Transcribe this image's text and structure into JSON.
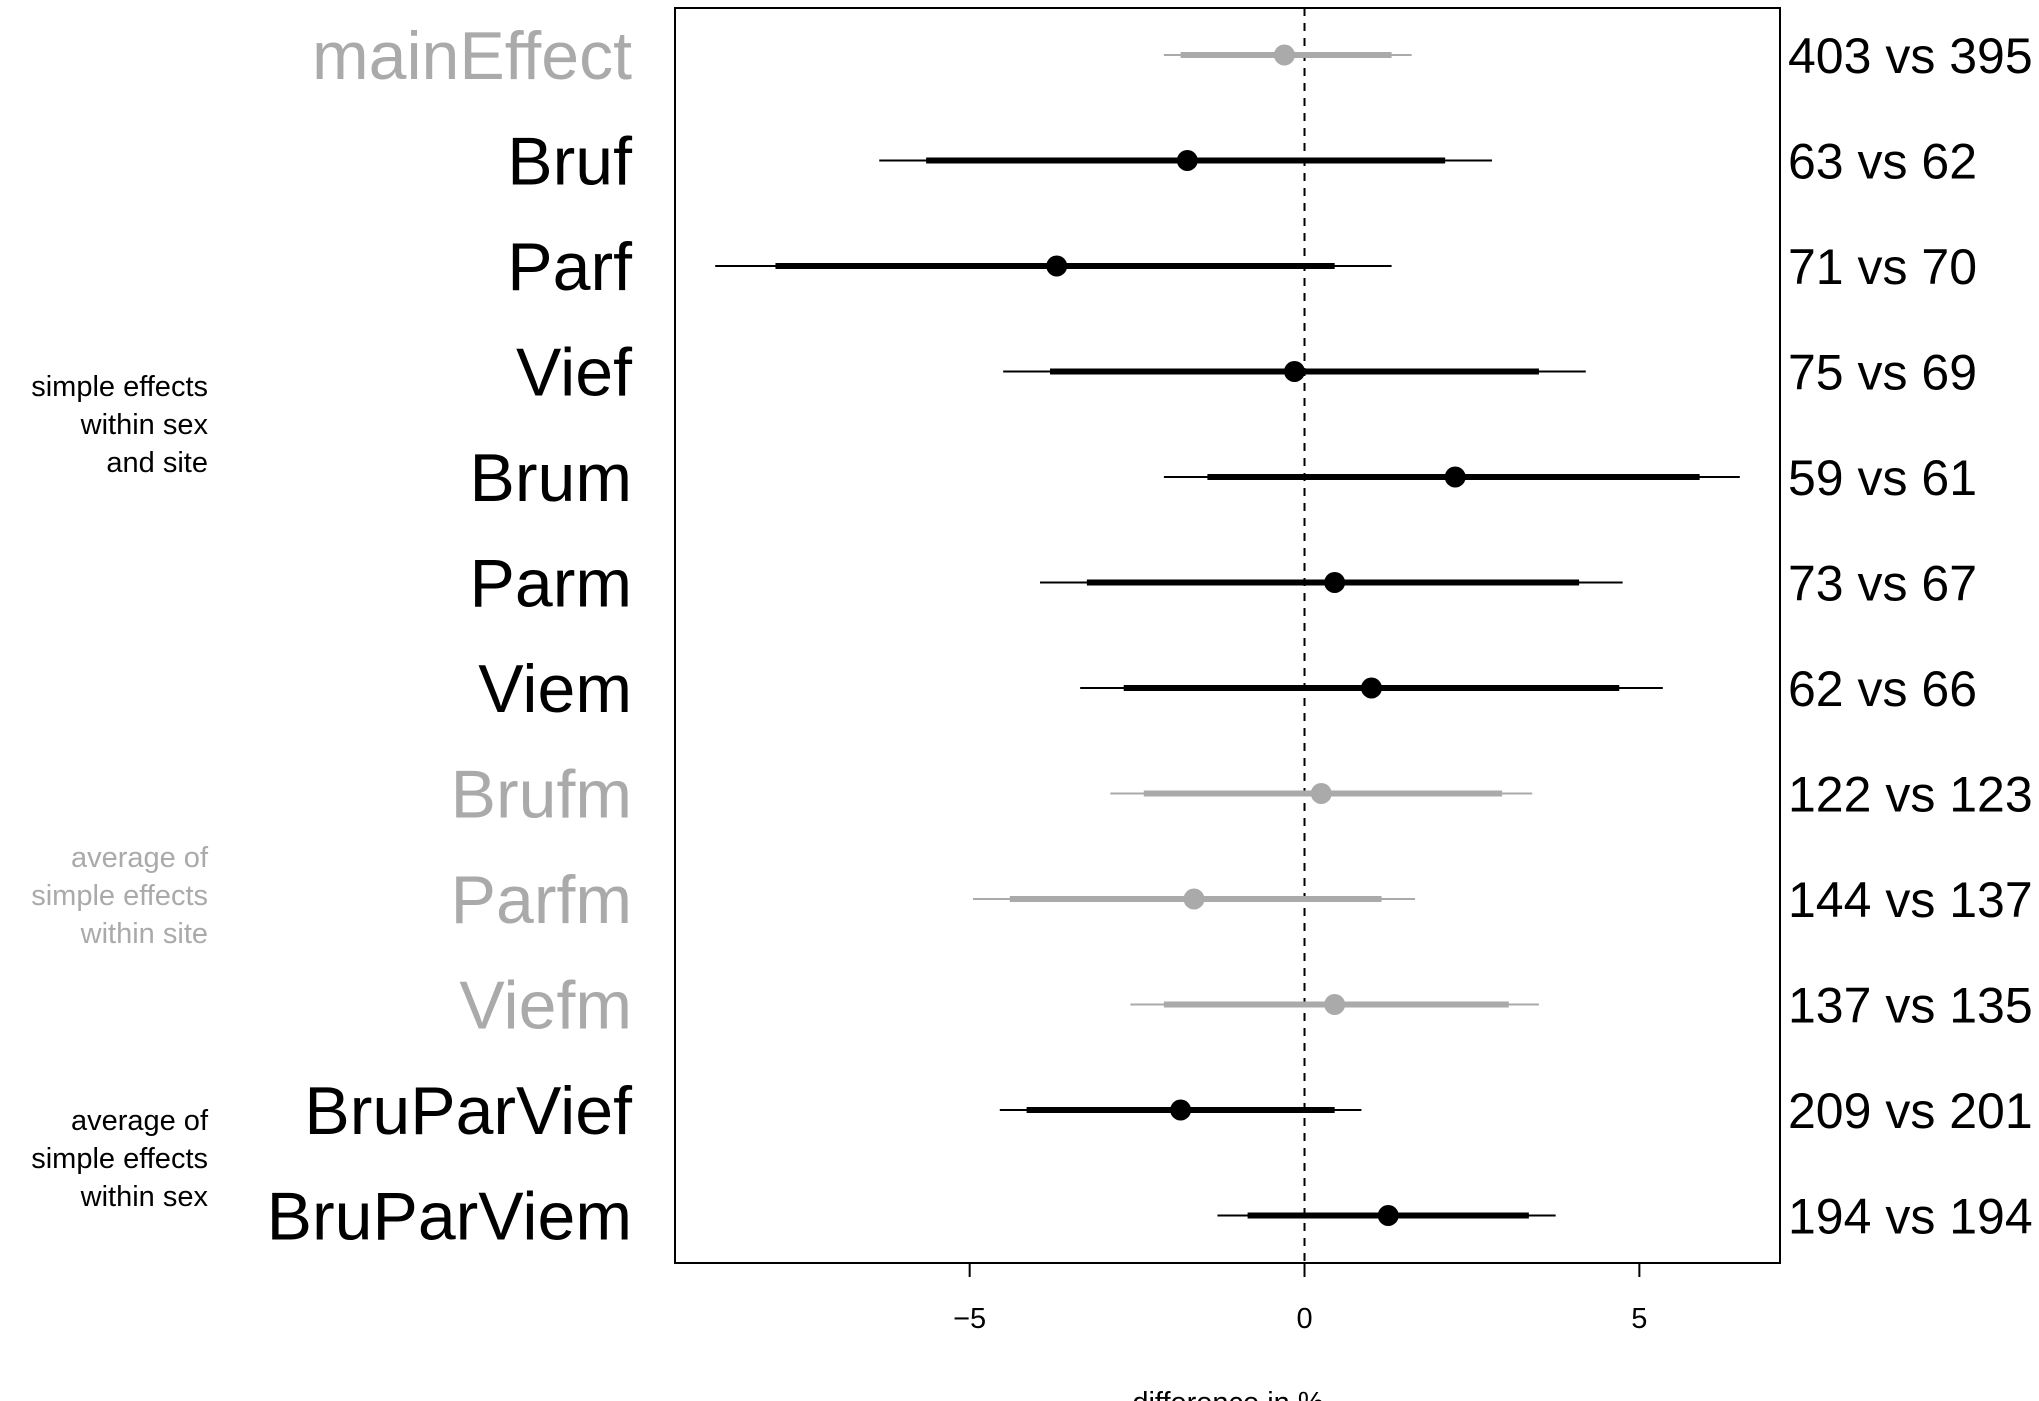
{
  "chart_data": {
    "type": "forest",
    "xlabel": "difference in %",
    "xlim": [
      -9.4,
      7.1
    ],
    "xticks": [
      -5,
      0,
      5
    ],
    "xtick_labels": [
      "−5",
      "0",
      "5"
    ],
    "reference_line": 0,
    "colors": {
      "black": "#000000",
      "grey": "#aaaaaa"
    },
    "rows": [
      {
        "label": "mainEffect",
        "color": "grey",
        "estimate": -0.3,
        "inner": [
          -1.85,
          1.3
        ],
        "outer": [
          -2.1,
          1.6
        ],
        "count": "403 vs 395"
      },
      {
        "label": "Bruf",
        "color": "black",
        "estimate": -1.75,
        "inner": [
          -5.65,
          2.1
        ],
        "outer": [
          -6.35,
          2.8
        ],
        "count": "63 vs 62"
      },
      {
        "label": "Parf",
        "color": "black",
        "estimate": -3.7,
        "inner": [
          -7.9,
          0.45
        ],
        "outer": [
          -8.8,
          1.3
        ],
        "count": "71 vs 70"
      },
      {
        "label": "Vief",
        "color": "black",
        "estimate": -0.15,
        "inner": [
          -3.8,
          3.5
        ],
        "outer": [
          -4.5,
          4.2
        ],
        "count": "75 vs 69"
      },
      {
        "label": "Brum",
        "color": "black",
        "estimate": 2.25,
        "inner": [
          -1.45,
          5.9
        ],
        "outer": [
          -2.1,
          6.5
        ],
        "count": "59 vs 61"
      },
      {
        "label": "Parm",
        "color": "black",
        "estimate": 0.45,
        "inner": [
          -3.25,
          4.1
        ],
        "outer": [
          -3.95,
          4.75
        ],
        "count": "73 vs 67"
      },
      {
        "label": "Viem",
        "color": "black",
        "estimate": 1.0,
        "inner": [
          -2.7,
          4.7
        ],
        "outer": [
          -3.35,
          5.35
        ],
        "count": "62 vs 66"
      },
      {
        "label": "Brufm",
        "color": "grey",
        "estimate": 0.25,
        "inner": [
          -2.4,
          2.95
        ],
        "outer": [
          -2.9,
          3.4
        ],
        "count": "122 vs 123"
      },
      {
        "label": "Parfm",
        "color": "grey",
        "estimate": -1.65,
        "inner": [
          -4.4,
          1.15
        ],
        "outer": [
          -4.95,
          1.65
        ],
        "count": "144 vs 137"
      },
      {
        "label": "Viefm",
        "color": "grey",
        "estimate": 0.45,
        "inner": [
          -2.1,
          3.05
        ],
        "outer": [
          -2.6,
          3.5
        ],
        "count": "137 vs 135"
      },
      {
        "label": "BruParVief",
        "color": "black",
        "estimate": -1.85,
        "inner": [
          -4.15,
          0.45
        ],
        "outer": [
          -4.55,
          0.85
        ],
        "count": "209 vs 201"
      },
      {
        "label": "BruParViem",
        "color": "black",
        "estimate": 1.25,
        "inner": [
          -0.85,
          3.35
        ],
        "outer": [
          -1.3,
          3.75
        ],
        "count": "194 vs 194"
      }
    ],
    "group_labels": [
      {
        "lines": [
          "simple effects",
          "within sex",
          "and site"
        ],
        "color": "black"
      },
      {
        "lines": [
          "average of",
          "simple effects",
          "within site"
        ],
        "color": "grey"
      },
      {
        "lines": [
          "average of",
          "simple effects",
          "within sex"
        ],
        "color": "black"
      }
    ]
  }
}
